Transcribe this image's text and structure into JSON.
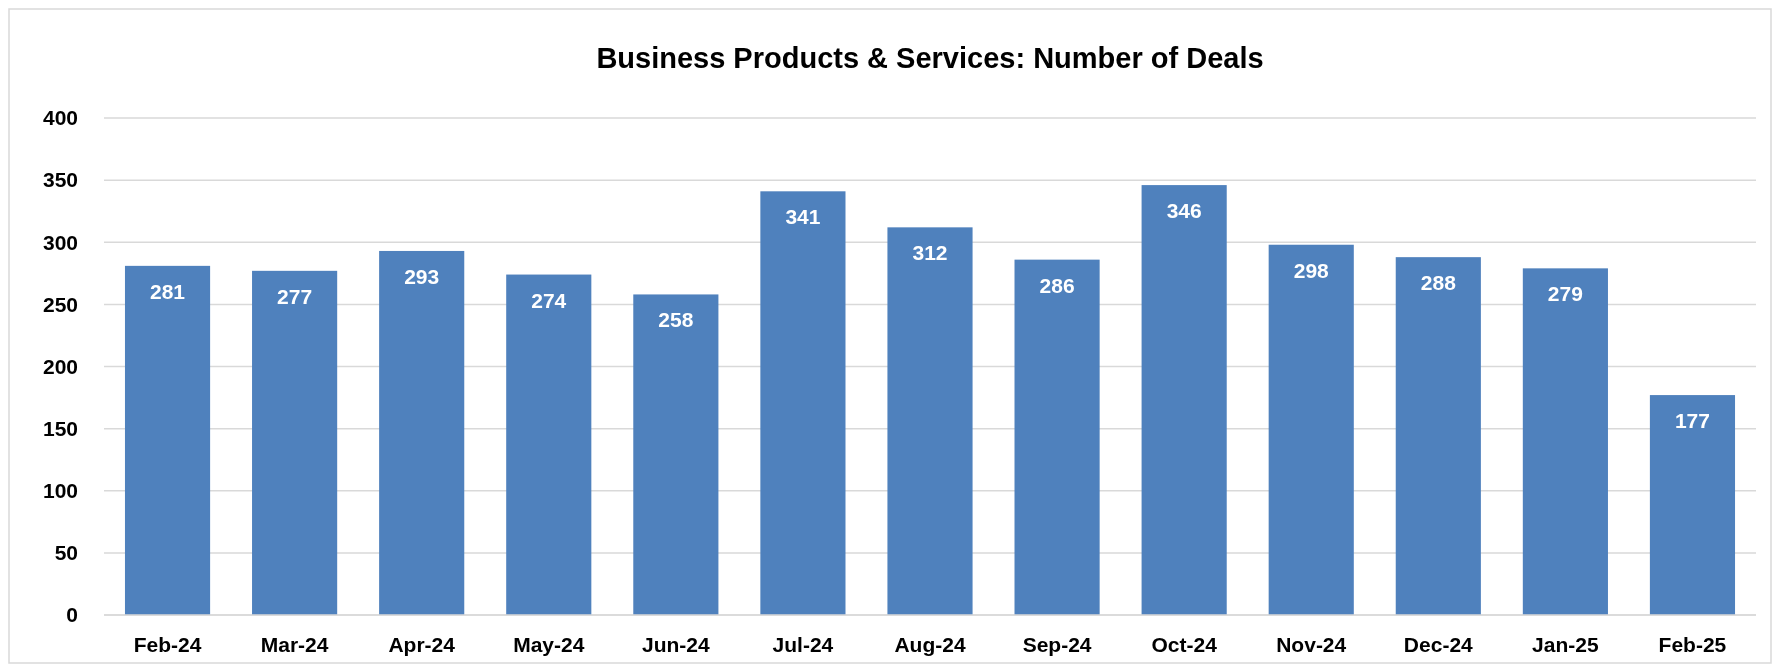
{
  "chart_data": {
    "type": "bar",
    "title": "Business Products & Services: Number of Deals",
    "categories": [
      "Feb-24",
      "Mar-24",
      "Apr-24",
      "May-24",
      "Jun-24",
      "Jul-24",
      "Aug-24",
      "Sep-24",
      "Oct-24",
      "Nov-24",
      "Dec-24",
      "Jan-25",
      "Feb-25"
    ],
    "values": [
      281,
      277,
      293,
      274,
      258,
      341,
      312,
      286,
      346,
      298,
      288,
      279,
      177
    ],
    "color": "#4f81bd",
    "ylim": [
      0,
      400
    ],
    "yticks": [
      0,
      50,
      100,
      150,
      200,
      250,
      300,
      350,
      400
    ],
    "grid": "y",
    "data_labels": true
  }
}
